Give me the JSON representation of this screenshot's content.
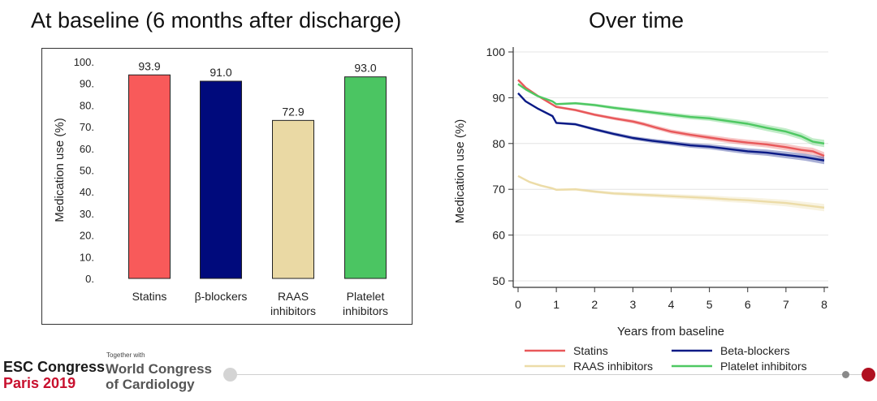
{
  "left_title": "At baseline (6 months after discharge)",
  "right_title": "Over time",
  "chart_data": [
    {
      "type": "bar",
      "title": "At baseline (6 months after discharge)",
      "ylabel": "Medication use (%)",
      "xlabel": "",
      "ylim": [
        0,
        100
      ],
      "yticks": [
        "0.",
        "10.",
        "20.",
        "30.",
        "40.",
        "50.",
        "60.",
        "70.",
        "80.",
        "90.",
        "100."
      ],
      "categories": [
        [
          "Statins"
        ],
        [
          "β-blockers"
        ],
        [
          "RAAS",
          "inhibitors"
        ],
        [
          "Platelet",
          "inhibitors"
        ]
      ],
      "values": [
        93.9,
        91.0,
        72.9,
        93.0
      ],
      "value_labels": [
        "93.9",
        "91.0",
        "72.9",
        "93.0"
      ],
      "colors": [
        "#f85a5a",
        "#000a7c",
        "#ead9a4",
        "#4bc562"
      ]
    },
    {
      "type": "line",
      "title": "Over time",
      "xlabel": "Years from baseline",
      "ylabel": "Medication use (%)",
      "xlim": [
        0,
        8
      ],
      "ylim": [
        50,
        100
      ],
      "xticks": [
        "0",
        "1",
        "2",
        "3",
        "4",
        "5",
        "6",
        "7",
        "8"
      ],
      "yticks": [
        "50",
        "60",
        "70",
        "80",
        "90",
        "100"
      ],
      "grid": true,
      "legend": "bottom",
      "series": [
        {
          "name": "Statins",
          "color": "#e8585a",
          "band": 0.4,
          "x": [
            0,
            0.2,
            0.5,
            0.9,
            1.0,
            1.5,
            2.0,
            2.5,
            3.0,
            3.3,
            3.6,
            4.0,
            4.5,
            5.0,
            5.5,
            6.0,
            6.5,
            7.0,
            7.4,
            7.7,
            8.0
          ],
          "y": [
            93.9,
            92.2,
            90.5,
            88.5,
            88.0,
            87.3,
            86.3,
            85.5,
            84.8,
            84.2,
            83.5,
            82.6,
            81.9,
            81.3,
            80.7,
            80.2,
            79.8,
            79.2,
            78.6,
            78.3,
            77.3
          ]
        },
        {
          "name": "Beta-blockers",
          "color": "#0a1a86",
          "band": 0.4,
          "x": [
            0,
            0.2,
            0.5,
            0.9,
            1.0,
            1.5,
            2.0,
            2.5,
            3.0,
            3.5,
            4.0,
            4.5,
            5.0,
            5.5,
            6.0,
            6.5,
            7.0,
            7.5,
            8.0
          ],
          "y": [
            91.0,
            89.2,
            87.7,
            86.0,
            84.5,
            84.2,
            83.1,
            82.1,
            81.2,
            80.6,
            80.1,
            79.6,
            79.3,
            78.8,
            78.3,
            78.0,
            77.5,
            77.0,
            76.3
          ]
        },
        {
          "name": "RAAS inhibitors",
          "color": "#ecdca8",
          "band": 0.4,
          "x": [
            0,
            0.3,
            0.6,
            0.9,
            1.0,
            1.5,
            2.0,
            2.5,
            3.0,
            3.5,
            4.0,
            4.5,
            5.0,
            5.5,
            6.0,
            6.5,
            7.0,
            7.5,
            8.0
          ],
          "y": [
            72.9,
            71.6,
            70.8,
            70.2,
            69.9,
            70.0,
            69.5,
            69.1,
            68.9,
            68.7,
            68.5,
            68.3,
            68.1,
            67.8,
            67.6,
            67.3,
            67.0,
            66.5,
            66.0
          ]
        },
        {
          "name": "Platelet inhibitors",
          "color": "#4ec862",
          "band": 0.4,
          "x": [
            0,
            0.2,
            0.5,
            0.9,
            1.0,
            1.5,
            2.0,
            2.5,
            3.0,
            3.5,
            4.0,
            4.5,
            5.0,
            5.5,
            6.0,
            6.5,
            7.0,
            7.4,
            7.7,
            8.0
          ],
          "y": [
            93.0,
            91.8,
            90.4,
            89.2,
            88.6,
            88.8,
            88.4,
            87.8,
            87.3,
            86.8,
            86.3,
            85.8,
            85.5,
            84.9,
            84.3,
            83.4,
            82.6,
            81.6,
            80.4,
            80.0
          ]
        }
      ]
    }
  ],
  "footer": {
    "esc_line1": "ESC Congress",
    "esc_line2": "Paris 2019",
    "together_with": "Together with",
    "wc_line1": "World Congress",
    "wc_line2": "of Cardiology"
  }
}
